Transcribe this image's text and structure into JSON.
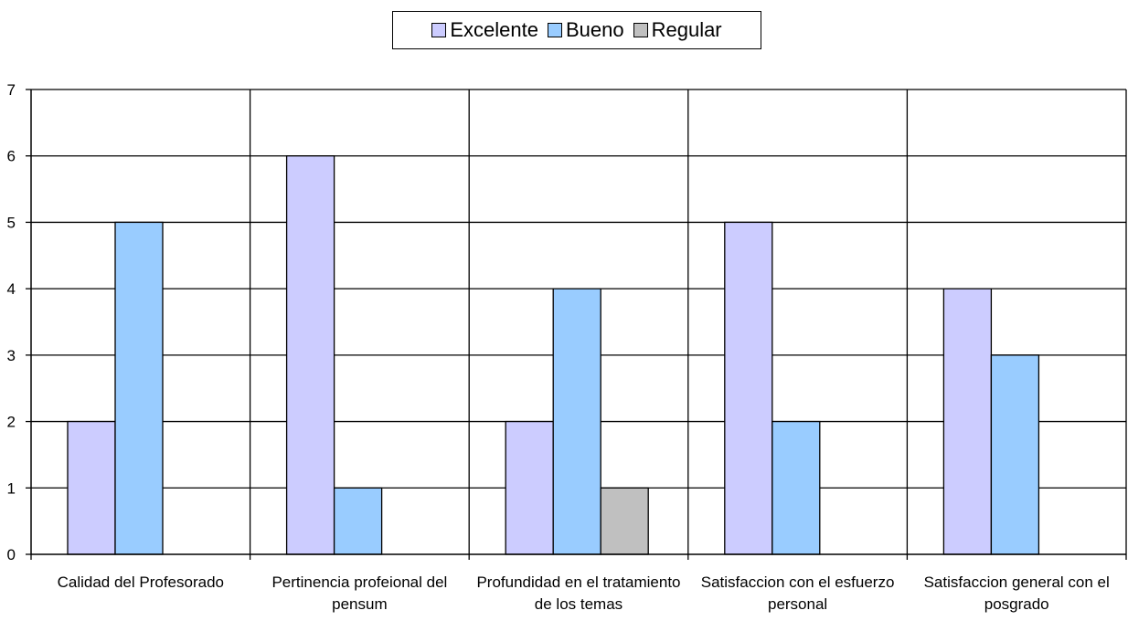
{
  "chart_data": {
    "type": "bar",
    "title": "",
    "xlabel": "",
    "ylabel": "",
    "categories": [
      "Calidad del Profesorado",
      "Pertinencia profeional del pensum",
      "Profundidad en el tratamiento de los temas",
      "Satisfaccion con el esfuerzo personal",
      "Satisfaccion general con el posgrado"
    ],
    "series": [
      {
        "name": "Excelente",
        "color": "#ccccff",
        "values": [
          2,
          6,
          2,
          5,
          4
        ]
      },
      {
        "name": "Bueno",
        "color": "#99ccff",
        "values": [
          5,
          1,
          4,
          2,
          3
        ]
      },
      {
        "name": "Regular",
        "color": "#c0c0c0",
        "values": [
          0,
          0,
          1,
          0,
          0
        ]
      }
    ],
    "ylim": [
      0,
      7
    ],
    "yticks": [
      "0",
      "1",
      "2",
      "3",
      "4",
      "5",
      "6",
      "7"
    ],
    "grid": true,
    "legend_position": "top"
  }
}
